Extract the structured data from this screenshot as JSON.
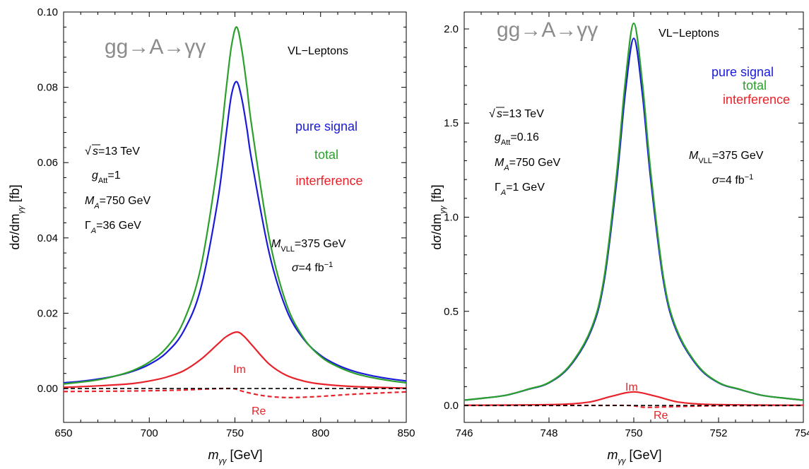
{
  "chart_data": [
    {
      "type": "line",
      "process_label": "gg→A→γγ",
      "model_label": "VL−Leptons",
      "xlabel": "m_γγ [GeV]",
      "ylabel": "dσ/dm_γγ [fb]",
      "xlim": [
        650,
        850
      ],
      "ylim": [
        -0.009,
        0.1
      ],
      "xticks": [
        650,
        700,
        750,
        800,
        850
      ],
      "xtick_labels": [
        "650",
        "700",
        "750",
        "800",
        "850"
      ],
      "yticks": [
        0,
        0.02,
        0.04,
        0.06,
        0.08,
        0.1
      ],
      "ytick_labels": [
        "0.00",
        "0.02",
        "0.04",
        "0.06",
        "0.08",
        "0.10"
      ],
      "params": {
        "sqrt_s": "=13 TeV",
        "g_att": "=1",
        "mass": "=750 GeV",
        "width": "=36 GeV",
        "mvll": "=375 GeV",
        "sigma": "=4 fb"
      },
      "curve_labels": {
        "im": "Im",
        "re": "Re"
      },
      "legend": [
        {
          "label": "pure signal",
          "color": "#1a1adb"
        },
        {
          "label": "total",
          "color": "#2ca02c"
        },
        {
          "label": "interference",
          "color": "#e8222a"
        }
      ],
      "series": [
        {
          "role": "pure-signal",
          "color": "#1a1adb",
          "style": "solid",
          "x": [
            650,
            660,
            670,
            680,
            690,
            700,
            710,
            720,
            730,
            740,
            745,
            748,
            751,
            754,
            757,
            760,
            770,
            780,
            790,
            800,
            810,
            820,
            830,
            840,
            850
          ],
          "y": [
            0.0015,
            0.0019,
            0.0025,
            0.0033,
            0.0045,
            0.0064,
            0.0095,
            0.0152,
            0.0265,
            0.05,
            0.068,
            0.078,
            0.0815,
            0.077,
            0.069,
            0.06,
            0.036,
            0.021,
            0.0132,
            0.0088,
            0.0062,
            0.0045,
            0.0034,
            0.0026,
            0.002
          ]
        },
        {
          "role": "total",
          "color": "#2ca02c",
          "style": "solid",
          "x": [
            650,
            660,
            670,
            680,
            690,
            700,
            710,
            720,
            730,
            740,
            745,
            748,
            751,
            754,
            757,
            760,
            770,
            780,
            790,
            800,
            810,
            820,
            830,
            840,
            850
          ],
          "y": [
            0.0012,
            0.0017,
            0.0023,
            0.0033,
            0.0047,
            0.007,
            0.0108,
            0.0178,
            0.032,
            0.06,
            0.08,
            0.091,
            0.096,
            0.09,
            0.08,
            0.069,
            0.04,
            0.0225,
            0.0135,
            0.0085,
            0.0058,
            0.004,
            0.0029,
            0.0021,
            0.0015
          ]
        },
        {
          "role": "interference-im",
          "color": "#e8222a",
          "style": "solid",
          "x": [
            650,
            670,
            690,
            700,
            710,
            720,
            730,
            740,
            745,
            751,
            755,
            760,
            770,
            780,
            790,
            800,
            820,
            850
          ],
          "y": [
            0.0003,
            0.0007,
            0.0013,
            0.002,
            0.003,
            0.0047,
            0.0077,
            0.0118,
            0.0138,
            0.015,
            0.014,
            0.0115,
            0.0065,
            0.0035,
            0.002,
            0.0012,
            0.0005,
            0.0001
          ]
        },
        {
          "role": "interference-re",
          "color": "#e8222a",
          "style": "dashed",
          "x": [
            650,
            680,
            700,
            720,
            735,
            745,
            750,
            755,
            765,
            775,
            785,
            800,
            820,
            850
          ],
          "y": [
            -0.0008,
            -0.0007,
            -0.0006,
            -0.0004,
            -0.0001,
            0.0,
            -0.0001,
            -0.0008,
            -0.0018,
            -0.0023,
            -0.0024,
            -0.0021,
            -0.0015,
            -0.0009
          ]
        },
        {
          "role": "zero",
          "color": "#000000",
          "style": "dashed",
          "x": [
            650,
            850
          ],
          "y": [
            0.0,
            0.0
          ]
        }
      ]
    },
    {
      "type": "line",
      "process_label": "gg→A→γγ",
      "model_label": "VL−Leptons",
      "xlabel": "m_γγ [GeV]",
      "ylabel": "dσ/dm_γγ [fb]",
      "xlim": [
        746,
        754
      ],
      "ylim": [
        -0.09,
        2.09
      ],
      "xticks": [
        746,
        748,
        750,
        752,
        754
      ],
      "xtick_labels": [
        "746",
        "748",
        "750",
        "752",
        "754"
      ],
      "yticks": [
        0,
        0.5,
        1.0,
        1.5,
        2.0
      ],
      "ytick_labels": [
        "0.0",
        "0.5",
        "1.0",
        "1.5",
        "2.0"
      ],
      "params": {
        "sqrt_s": "=13 TeV",
        "g_att": "=0.16",
        "mass": "=750 GeV",
        "width": "=1 GeV",
        "mvll": "=375 GeV",
        "sigma": "=4 fb"
      },
      "curve_labels": {
        "im": "Im",
        "re": "Re"
      },
      "legend": [
        {
          "label": "pure signal",
          "color": "#1a1adb"
        },
        {
          "label": "total",
          "color": "#2ca02c"
        },
        {
          "label": "interference",
          "color": "#e8222a"
        }
      ],
      "series": [
        {
          "role": "pure-signal",
          "color": "#1a1adb",
          "style": "solid",
          "x": [
            746,
            746.5,
            747,
            747.5,
            748,
            748.5,
            749,
            749.3,
            749.6,
            749.8,
            750,
            750.2,
            750.4,
            750.7,
            751,
            751.5,
            752,
            752.5,
            753,
            753.5,
            754
          ],
          "y": [
            0.028,
            0.04,
            0.055,
            0.085,
            0.12,
            0.21,
            0.4,
            0.66,
            1.2,
            1.66,
            1.95,
            1.66,
            1.2,
            0.66,
            0.4,
            0.21,
            0.12,
            0.085,
            0.055,
            0.04,
            0.028
          ]
        },
        {
          "role": "total",
          "color": "#2ca02c",
          "style": "solid",
          "x": [
            746,
            746.5,
            747,
            747.5,
            748,
            748.5,
            749,
            749.3,
            749.6,
            749.8,
            750,
            750.2,
            750.4,
            750.7,
            751,
            751.5,
            752,
            752.5,
            753,
            753.5,
            754
          ],
          "y": [
            0.028,
            0.04,
            0.055,
            0.086,
            0.122,
            0.215,
            0.41,
            0.68,
            1.24,
            1.72,
            2.03,
            1.72,
            1.24,
            0.68,
            0.41,
            0.215,
            0.122,
            0.086,
            0.055,
            0.04,
            0.028
          ]
        },
        {
          "role": "interference-im",
          "color": "#e8222a",
          "style": "solid",
          "x": [
            746,
            747,
            748,
            748.5,
            749,
            749.5,
            750,
            750.5,
            751,
            751.5,
            752,
            753,
            754
          ],
          "y": [
            0.001,
            0.002,
            0.004,
            0.008,
            0.02,
            0.05,
            0.072,
            0.05,
            0.02,
            0.008,
            0.004,
            0.002,
            0.001
          ]
        },
        {
          "role": "interference-re",
          "color": "#e8222a",
          "style": "dashed",
          "x": [
            746,
            748,
            749,
            749.8,
            750,
            750.3,
            751,
            752,
            754
          ],
          "y": [
            0.0,
            0.0,
            0.0,
            0.0,
            -0.002,
            -0.01,
            -0.006,
            -0.002,
            0.0
          ]
        },
        {
          "role": "zero",
          "color": "#000000",
          "style": "dashed",
          "x": [
            746,
            754
          ],
          "y": [
            0.0,
            0.0
          ]
        }
      ]
    }
  ]
}
